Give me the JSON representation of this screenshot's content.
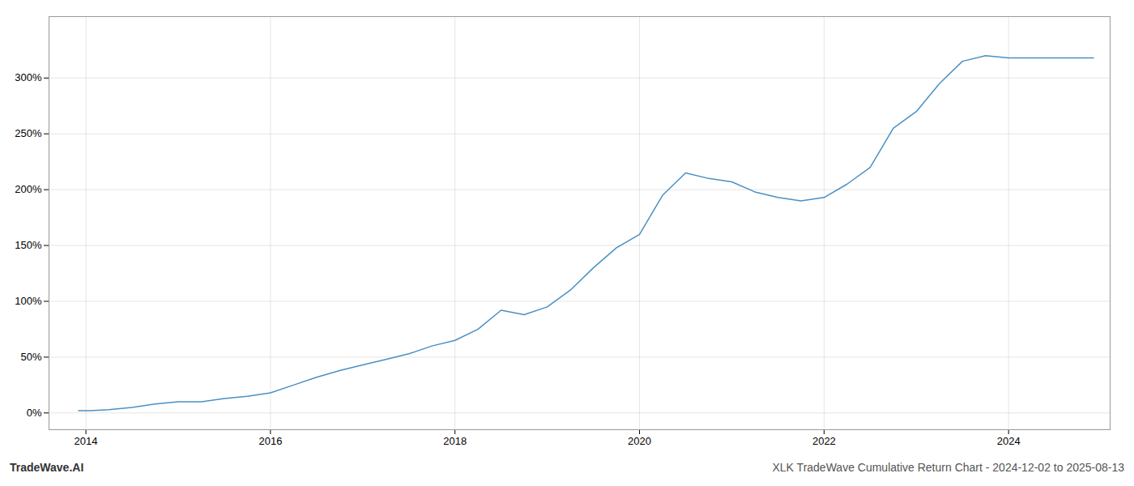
{
  "chart_data": {
    "type": "line",
    "title": "XLK TradeWave Cumulative Return Chart - 2024-12-02 to 2025-08-13",
    "annotations": [
      "TradeWave.AI"
    ],
    "x": [
      2013.92,
      2014.05,
      2014.25,
      2014.5,
      2014.75,
      2015.0,
      2015.25,
      2015.5,
      2015.75,
      2016.0,
      2016.25,
      2016.5,
      2016.75,
      2017.0,
      2017.25,
      2017.5,
      2017.75,
      2018.0,
      2018.25,
      2018.5,
      2018.75,
      2019.0,
      2019.25,
      2019.5,
      2019.75,
      2020.0,
      2020.25,
      2020.5,
      2020.75,
      2021.0,
      2021.25,
      2021.5,
      2021.75,
      2022.0,
      2022.25,
      2022.5,
      2022.75,
      2023.0,
      2023.25,
      2023.5,
      2023.75,
      2024.0,
      2024.25,
      2024.5,
      2024.75,
      2024.92
    ],
    "values": [
      2,
      2,
      3,
      5,
      8,
      10,
      10,
      13,
      15,
      18,
      25,
      32,
      38,
      43,
      48,
      53,
      60,
      65,
      75,
      92,
      88,
      95,
      110,
      130,
      148,
      160,
      195,
      215,
      210,
      207,
      198,
      193,
      190,
      193,
      205,
      220,
      255,
      270,
      295,
      315,
      320,
      318,
      318,
      318,
      318,
      318
    ],
    "color": "#4a90c4",
    "xlim": [
      2013.6,
      2025.1
    ],
    "xticks": [
      2014,
      2016,
      2018,
      2020,
      2022,
      2024
    ],
    "ylim": [
      -15,
      355
    ],
    "yticks": [
      {
        "value": 0,
        "label": "0%"
      },
      {
        "value": 50,
        "label": "50%"
      },
      {
        "value": 100,
        "label": "100%"
      },
      {
        "value": 150,
        "label": "150%"
      },
      {
        "value": 200,
        "label": "200%"
      },
      {
        "value": 250,
        "label": "250%"
      },
      {
        "value": 300,
        "label": "300%"
      }
    ],
    "grid": true
  }
}
